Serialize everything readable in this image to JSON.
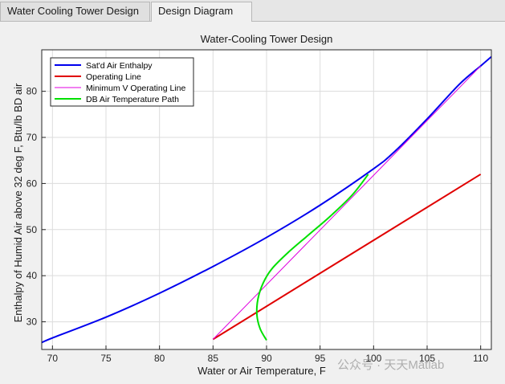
{
  "tabs": [
    {
      "label": "Water Cooling Tower Design",
      "active": false
    },
    {
      "label": "Design Diagram",
      "active": true
    }
  ],
  "watermark": "公众号 · 天天Matlab",
  "chart_data": {
    "type": "line",
    "title": "Water-Cooling Tower Design",
    "xlabel": "Water or Air Temperature, F",
    "ylabel": "Enthalpy of Humid Air above 32 deg F, Btu/lb BD air",
    "xlim": [
      69,
      111
    ],
    "ylim": [
      24,
      89
    ],
    "xticks": [
      70,
      75,
      80,
      85,
      90,
      95,
      100,
      105,
      110
    ],
    "yticks": [
      30,
      40,
      50,
      60,
      70,
      80
    ],
    "grid": true,
    "legend_position": "top-left",
    "series": [
      {
        "name": "Sat'd Air Enthalpy",
        "color": "#0000ee",
        "x": [
          69,
          70,
          75,
          80,
          85,
          90,
          95,
          100,
          102,
          105,
          108,
          110,
          111
        ],
        "y": [
          25.5,
          26.5,
          31,
          36.2,
          42,
          48.3,
          55.3,
          63.2,
          67,
          74,
          81.5,
          85.5,
          87.5
        ]
      },
      {
        "name": "Operating Line",
        "color": "#e00000",
        "x": [
          85,
          110
        ],
        "y": [
          26.2,
          62
        ]
      },
      {
        "name": "Minimum V Operating Line",
        "color": "#e000e0",
        "x": [
          85,
          110
        ],
        "y": [
          26.2,
          85.5
        ]
      },
      {
        "name": "DB Air Temperature Path",
        "color": "#00e000",
        "x": [
          90,
          89.4,
          89.1,
          89.2,
          89.7,
          90.5,
          92,
          94,
          96,
          98,
          99.5
        ],
        "y": [
          26,
          28.5,
          31.5,
          35,
          38.5,
          41.5,
          45,
          49,
          53,
          57.5,
          62
        ]
      }
    ]
  }
}
